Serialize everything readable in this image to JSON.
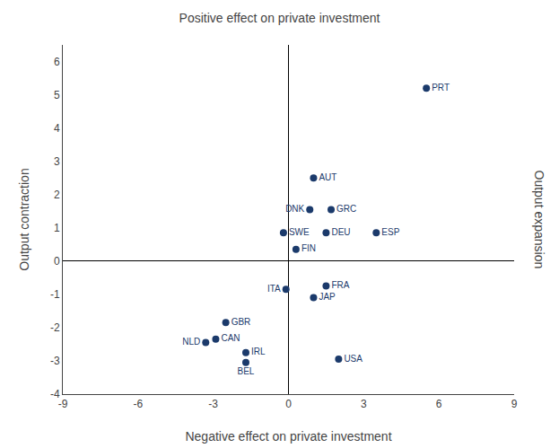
{
  "chart_data": {
    "type": "scatter",
    "title": "Positive effect on private investment",
    "xlabel": "Negative effect on private investment",
    "ylabel": "Output contraction",
    "ylabel_right": "Output expansion",
    "labels": [
      "PRT",
      "AUT",
      "GRC",
      "DNK",
      "ESP",
      "DEU",
      "SWE",
      "FIN",
      "FRA",
      "JAP",
      "ITA",
      "GBR",
      "CAN",
      "IRL",
      "NLD",
      "BEL",
      "USA"
    ],
    "x": [
      5.5,
      1.0,
      1.7,
      0.85,
      3.5,
      1.5,
      -0.2,
      0.3,
      1.5,
      1.0,
      -0.1,
      -2.5,
      -2.9,
      -1.7,
      -3.3,
      -1.7,
      2.0
    ],
    "values": [
      5.2,
      2.5,
      1.55,
      1.55,
      0.85,
      0.85,
      0.85,
      0.35,
      -0.75,
      -1.1,
      -0.85,
      -1.85,
      -2.35,
      -2.75,
      -2.45,
      -3.05,
      -2.95
    ],
    "color": "#1b3a6b",
    "xlim": [
      -9,
      9
    ],
    "ylim": [
      -4,
      6.5
    ],
    "xticks": [
      -9,
      -6,
      -3,
      0,
      3,
      6,
      9
    ],
    "yticks": [
      -4,
      -3,
      -2,
      -1,
      0,
      1,
      2,
      3,
      4,
      5,
      6
    ],
    "grid": false
  }
}
